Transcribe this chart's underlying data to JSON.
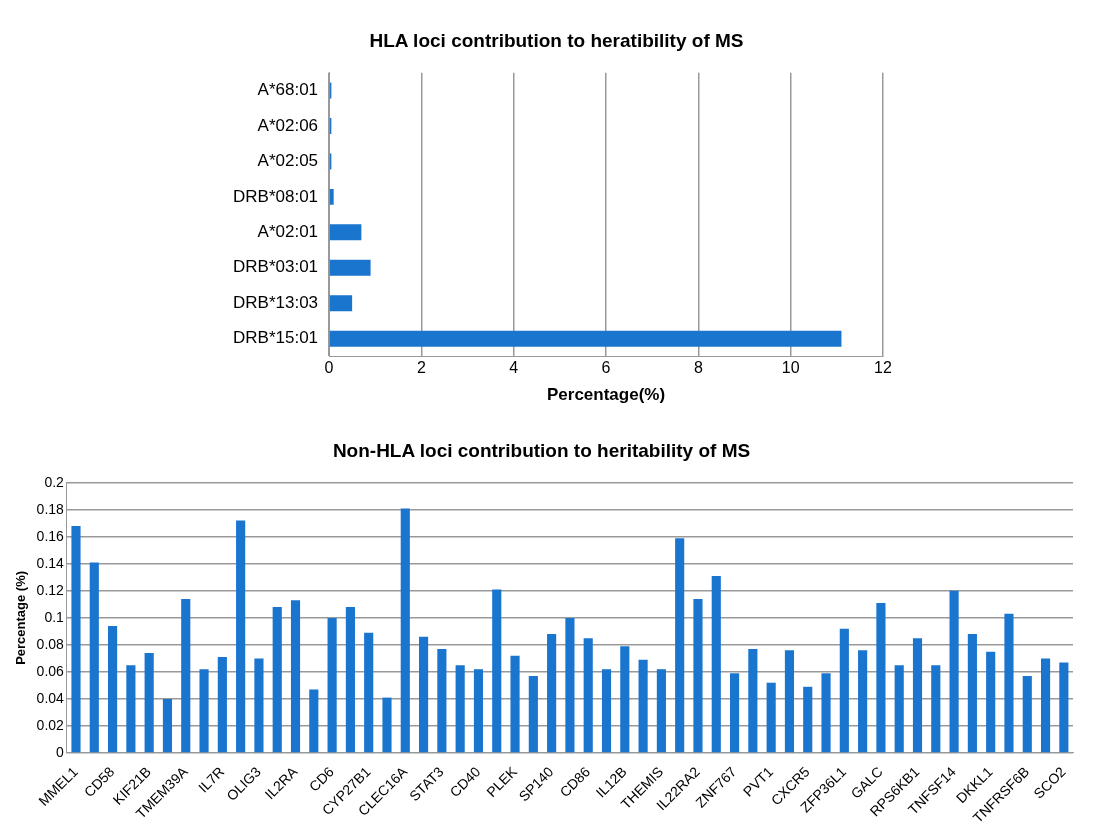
{
  "chart_data": [
    {
      "type": "bar",
      "title": "HLA loci contribution to heratibility of MS",
      "xlabel": "Percentage(%)",
      "orientation": "horizontal",
      "categories": [
        "A*68:01",
        "A*02:06",
        "A*02:05",
        "DRB*08:01",
        "A*02:01",
        "DRB*03:01",
        "DRB*13:03",
        "DRB*15:01"
      ],
      "values": [
        0.05,
        0.05,
        0.05,
        0.1,
        0.7,
        0.9,
        0.5,
        11.1
      ],
      "color": "#1a75cf",
      "xlim": [
        0,
        12
      ],
      "xticks": [
        0,
        2,
        4,
        6,
        8,
        10,
        12
      ],
      "grid": "x",
      "legend": false
    },
    {
      "type": "bar",
      "title": "Non-HLA loci contribution to heritability of MS",
      "ylabel": "Percentage (%)",
      "categories": [
        "MMEL1",
        null,
        "CD58",
        null,
        "KIF21B",
        null,
        "TMEM39A",
        null,
        "IL7R",
        null,
        "OLIG3",
        null,
        "IL2RA",
        null,
        "CD6",
        null,
        "CYP27B1",
        null,
        "CLEC16A",
        null,
        "STAT3",
        null,
        "CD40",
        null,
        "PLEK",
        null,
        "SP140",
        null,
        "CD86",
        null,
        "IL12B",
        null,
        "THEMIS",
        null,
        "IL22RA2",
        null,
        "ZNF767",
        null,
        "PVT1",
        null,
        "CXCR5",
        null,
        "ZFP36L1",
        null,
        "GALC",
        null,
        "RPS6KB1",
        null,
        "TNFSF14",
        null,
        "DKKL1",
        null,
        "TNFRSF6B",
        null,
        "SCO2"
      ],
      "values": [
        0.168,
        0.141,
        0.094,
        0.065,
        0.074,
        0.04,
        0.114,
        0.062,
        0.071,
        0.172,
        0.07,
        0.108,
        0.113,
        0.047,
        0.1,
        0.108,
        0.089,
        0.041,
        0.181,
        0.086,
        0.077,
        0.065,
        0.062,
        0.121,
        0.072,
        0.057,
        0.088,
        0.1,
        0.085,
        0.062,
        0.079,
        0.069,
        0.062,
        0.159,
        0.114,
        0.131,
        0.059,
        0.077,
        0.052,
        0.076,
        0.049,
        0.059,
        0.092,
        0.076,
        0.111,
        0.065,
        0.085,
        0.065,
        0.12,
        0.088,
        0.075,
        0.103,
        0.057,
        0.07,
        0.067
      ],
      "color": "#1a75cf",
      "ylim": [
        0,
        0.2
      ],
      "yticks": [
        0,
        0.02,
        0.04,
        0.06,
        0.08,
        0.1,
        0.12,
        0.14,
        0.16,
        0.18,
        0.2
      ],
      "grid": "y",
      "legend": false
    }
  ]
}
